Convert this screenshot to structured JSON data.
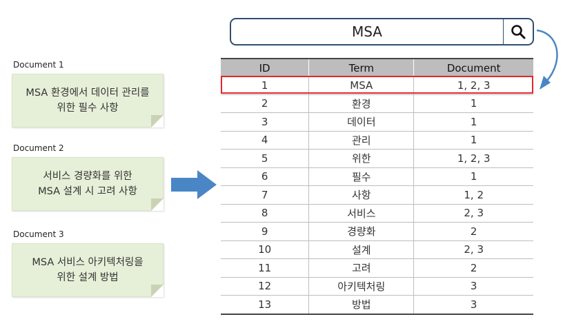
{
  "documents": [
    {
      "label": "Document 1",
      "text": "MSA 환경에서 데이터 관리를\n위한 필수 사항"
    },
    {
      "label": "Document 2",
      "text": "서비스 경량화를 위한\nMSA 설계 시 고려 사항"
    },
    {
      "label": "Document 3",
      "text": "MSA 서비스 아키텍처링을\n위한 설계 방법"
    }
  ],
  "search": {
    "query": "MSA",
    "icon": "search-icon"
  },
  "table": {
    "headers": [
      "ID",
      "Term",
      "Document"
    ],
    "rows": [
      {
        "id": "1",
        "term": "MSA",
        "doc": "1, 2, 3"
      },
      {
        "id": "2",
        "term": "환경",
        "doc": "1"
      },
      {
        "id": "3",
        "term": "데이터",
        "doc": "1"
      },
      {
        "id": "4",
        "term": "관리",
        "doc": "1"
      },
      {
        "id": "5",
        "term": "위한",
        "doc": "1, 2, 3"
      },
      {
        "id": "6",
        "term": "필수",
        "doc": "1"
      },
      {
        "id": "7",
        "term": "사항",
        "doc": "1, 2"
      },
      {
        "id": "8",
        "term": "서비스",
        "doc": "2, 3"
      },
      {
        "id": "9",
        "term": "경량화",
        "doc": "2"
      },
      {
        "id": "10",
        "term": "설계",
        "doc": "2, 3"
      },
      {
        "id": "11",
        "term": "고려",
        "doc": "2"
      },
      {
        "id": "12",
        "term": "아키텍처링",
        "doc": "3"
      },
      {
        "id": "13",
        "term": "방법",
        "doc": "3"
      }
    ],
    "highlighted_row": "1"
  },
  "colors": {
    "note_bg": "#e6efd8",
    "arrow": "#4a86c5",
    "highlight": "#e0262c",
    "search_border": "#2f4e6f",
    "header_bg": "#bdbdbd"
  }
}
